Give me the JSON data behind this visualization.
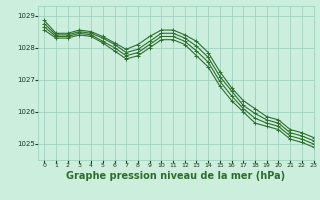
{
  "background_color": "#cceedd",
  "grid_color": "#99ccbb",
  "line_color": "#2d6e2d",
  "xlabel": "Graphe pression niveau de la mer (hPa)",
  "xlabel_fontsize": 7,
  "ylim": [
    1024.5,
    1029.3
  ],
  "xlim": [
    -0.5,
    23
  ],
  "yticks": [
    1025,
    1026,
    1027,
    1028,
    1029
  ],
  "xticks": [
    0,
    1,
    2,
    3,
    4,
    5,
    6,
    7,
    8,
    9,
    10,
    11,
    12,
    13,
    14,
    15,
    16,
    17,
    18,
    19,
    20,
    21,
    22,
    23
  ],
  "series": [
    [
      1028.85,
      1028.45,
      1028.45,
      1028.55,
      1028.5,
      1028.35,
      1028.15,
      1027.95,
      1028.1,
      1028.35,
      1028.55,
      1028.55,
      1028.4,
      1028.2,
      1027.85,
      1027.25,
      1026.75,
      1026.35,
      1026.1,
      1025.85,
      1025.75,
      1025.45,
      1025.35,
      1025.2
    ],
    [
      1028.75,
      1028.4,
      1028.4,
      1028.5,
      1028.45,
      1028.3,
      1028.1,
      1027.85,
      1027.95,
      1028.2,
      1028.45,
      1028.45,
      1028.3,
      1028.05,
      1027.7,
      1027.1,
      1026.65,
      1026.2,
      1025.95,
      1025.75,
      1025.65,
      1025.35,
      1025.25,
      1025.1
    ],
    [
      1028.65,
      1028.35,
      1028.35,
      1028.45,
      1028.4,
      1028.2,
      1028.0,
      1027.75,
      1027.85,
      1028.1,
      1028.35,
      1028.35,
      1028.2,
      1027.9,
      1027.55,
      1026.95,
      1026.5,
      1026.1,
      1025.8,
      1025.65,
      1025.55,
      1025.25,
      1025.15,
      1025.0
    ],
    [
      1028.55,
      1028.3,
      1028.3,
      1028.4,
      1028.35,
      1028.15,
      1027.9,
      1027.65,
      1027.75,
      1028.0,
      1028.25,
      1028.25,
      1028.1,
      1027.75,
      1027.4,
      1026.8,
      1026.35,
      1026.0,
      1025.65,
      1025.55,
      1025.45,
      1025.15,
      1025.05,
      1024.9
    ]
  ],
  "marker": "+",
  "markersize": 3,
  "linewidth": 0.8
}
